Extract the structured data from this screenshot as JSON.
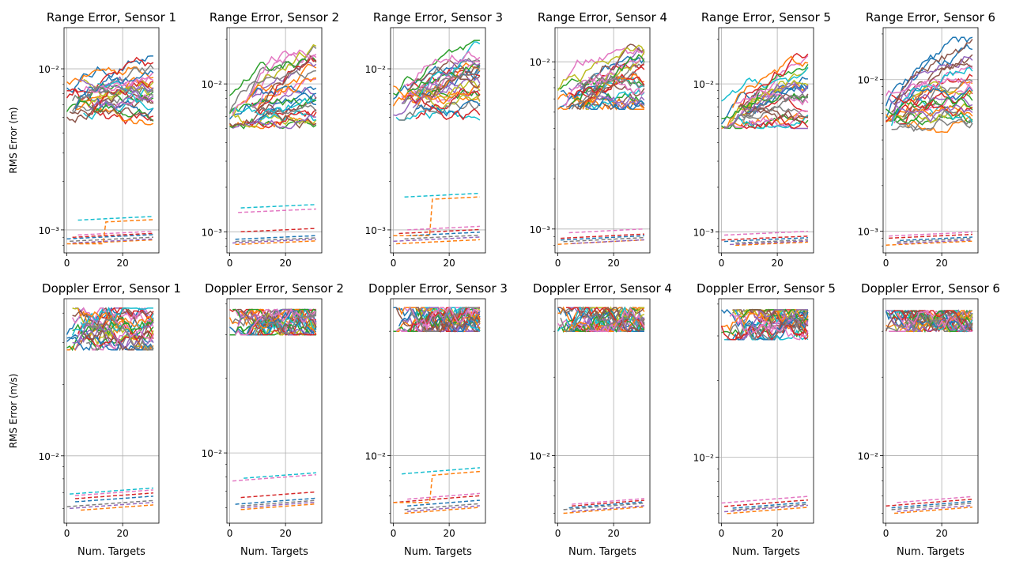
{
  "chart_data": {
    "type": "line",
    "xlabel": "Num. Targets",
    "x_ticks": [
      0,
      20
    ],
    "xlim": [
      -1,
      33
    ],
    "series_colors": [
      "#1f77b4",
      "#ff7f0e",
      "#2ca02c",
      "#d62728",
      "#9467bd",
      "#8c564b",
      "#e377c2",
      "#7f7f7f",
      "#bcbd22",
      "#17becf"
    ],
    "rows": [
      {
        "ylabel": "RMS Error (m)",
        "axes": [
          {
            "title": "Range Error, Sensor 1",
            "ylim": [
              0.00072,
              0.018
            ],
            "yticks": [
              {
                "v": 0.001,
                "label": "10⁻³"
              },
              {
                "v": 0.01,
                "label": "10⁻²"
              }
            ],
            "solid_band": [
              0.0045,
              0.012
            ],
            "solid_start": 0.0065,
            "dashed_levels": [
              0.00082,
              0.00083,
              0.00085,
              0.00088,
              0.0009,
              0.00093,
              0.00115
            ],
            "jump": {
              "x": 14,
              "from": 0.00082,
              "to": 0.00112
            }
          },
          {
            "title": "Range Error, Sensor 2",
            "ylim": [
              0.00072,
              0.024
            ],
            "yticks": [
              {
                "v": 0.001,
                "label": "10⁻³"
              },
              {
                "v": 0.01,
                "label": "10⁻²"
              }
            ],
            "solid_band": [
              0.005,
              0.021
            ],
            "solid_start": 0.006,
            "dashed_levels": [
              0.00082,
              0.00084,
              0.00086,
              0.00089,
              0.001,
              0.00135,
              0.00145
            ],
            "jump": null
          },
          {
            "title": "Range Error, Sensor 3",
            "ylim": [
              0.00072,
              0.018
            ],
            "yticks": [
              {
                "v": 0.001,
                "label": "10⁻³"
              },
              {
                "v": 0.01,
                "label": "10⁻²"
              }
            ],
            "solid_band": [
              0.0048,
              0.015
            ],
            "solid_start": 0.006,
            "dashed_levels": [
              0.00082,
              0.00085,
              0.00088,
              0.00092,
              0.00095,
              0.001,
              0.0016
            ],
            "jump": {
              "x": 14,
              "from": 0.00092,
              "to": 0.00155
            }
          },
          {
            "title": "Range Error, Sensor 4",
            "ylim": [
              0.00072,
              0.016
            ],
            "yticks": [
              {
                "v": 0.001,
                "label": "10⁻³"
              },
              {
                "v": 0.01,
                "label": "10⁻²"
              }
            ],
            "solid_band": [
              0.0052,
              0.013
            ],
            "solid_start": 0.006,
            "dashed_levels": [
              0.00081,
              0.00082,
              0.00084,
              0.00086,
              0.00088,
              0.00095
            ],
            "jump": null
          },
          {
            "title": "Range Error, Sensor 5",
            "ylim": [
              0.00072,
              0.024
            ],
            "yticks": [
              {
                "v": 0.001,
                "label": "10⁻³"
              },
              {
                "v": 0.01,
                "label": "10⁻²"
              }
            ],
            "solid_band": [
              0.005,
              0.02
            ],
            "solid_start": 0.0058,
            "dashed_levels": [
              0.00081,
              0.00082,
              0.00084,
              0.00086,
              0.00088,
              0.00095
            ],
            "jump": null
          },
          {
            "title": "Range Error, Sensor 6",
            "ylim": [
              0.00072,
              0.022
            ],
            "yticks": [
              {
                "v": 0.001,
                "label": "10⁻³"
              },
              {
                "v": 0.01,
                "label": "10⁻²"
              }
            ],
            "solid_band": [
              0.0045,
              0.019
            ],
            "solid_start": 0.0062,
            "dashed_levels": [
              0.00081,
              0.00083,
              0.00085,
              0.00087,
              0.0009,
              0.00093
            ],
            "jump": null
          }
        ]
      },
      {
        "ylabel": "RMS Error (m/s)",
        "axes": [
          {
            "title": "Doppler Error, Sensor 1",
            "ylim": [
              0.0052,
              0.046
            ],
            "yticks": [
              {
                "v": 0.01,
                "label": "10⁻²"
              }
            ],
            "solid_band": [
              0.028,
              0.042
            ],
            "solid_start": 0.034,
            "dashed_levels": [
              0.0059,
              0.006,
              0.0061,
              0.0064,
              0.0066,
              0.0068,
              0.0069
            ],
            "jump": null
          },
          {
            "title": "Doppler Error, Sensor 2",
            "ylim": [
              0.0052,
              0.042
            ],
            "yticks": [
              {
                "v": 0.01,
                "label": "10⁻²"
              }
            ],
            "solid_band": [
              0.03,
              0.038
            ],
            "solid_start": 0.033,
            "dashed_levels": [
              0.0059,
              0.006,
              0.0061,
              0.0062,
              0.0066,
              0.0077,
              0.0079
            ],
            "jump": null
          },
          {
            "title": "Doppler Error, Sensor 3",
            "ylim": [
              0.0055,
              0.04
            ],
            "yticks": [
              {
                "v": 0.01,
                "label": "10⁻²"
              }
            ],
            "solid_band": [
              0.03,
              0.037
            ],
            "solid_start": 0.033,
            "dashed_levels": [
              0.006,
              0.0061,
              0.0062,
              0.0064,
              0.0066,
              0.0068,
              0.0085
            ],
            "jump": {
              "x": 14,
              "from": 0.0066,
              "to": 0.0084
            }
          },
          {
            "title": "Doppler Error, Sensor 4",
            "ylim": [
              0.0055,
              0.04
            ],
            "yticks": [
              {
                "v": 0.01,
                "label": "10⁻²"
              }
            ],
            "solid_band": [
              0.03,
              0.037
            ],
            "solid_start": 0.033,
            "dashed_levels": [
              0.006,
              0.0061,
              0.0062,
              0.0063,
              0.0064,
              0.0065
            ],
            "jump": null
          },
          {
            "title": "Doppler Error, Sensor 5",
            "ylim": [
              0.0055,
              0.042
            ],
            "yticks": [
              {
                "v": 0.01,
                "label": "10⁻²"
              }
            ],
            "solid_band": [
              0.029,
              0.038
            ],
            "solid_start": 0.033,
            "dashed_levels": [
              0.006,
              0.0061,
              0.0062,
              0.0063,
              0.0064,
              0.0066
            ],
            "jump": null
          },
          {
            "title": "Doppler Error, Sensor 6",
            "ylim": [
              0.0055,
              0.04
            ],
            "yticks": [
              {
                "v": 0.01,
                "label": "10⁻²"
              }
            ],
            "solid_band": [
              0.03,
              0.036
            ],
            "solid_start": 0.033,
            "dashed_levels": [
              0.006,
              0.0061,
              0.0062,
              0.0063,
              0.0064,
              0.0066
            ],
            "jump": null
          }
        ]
      }
    ]
  }
}
